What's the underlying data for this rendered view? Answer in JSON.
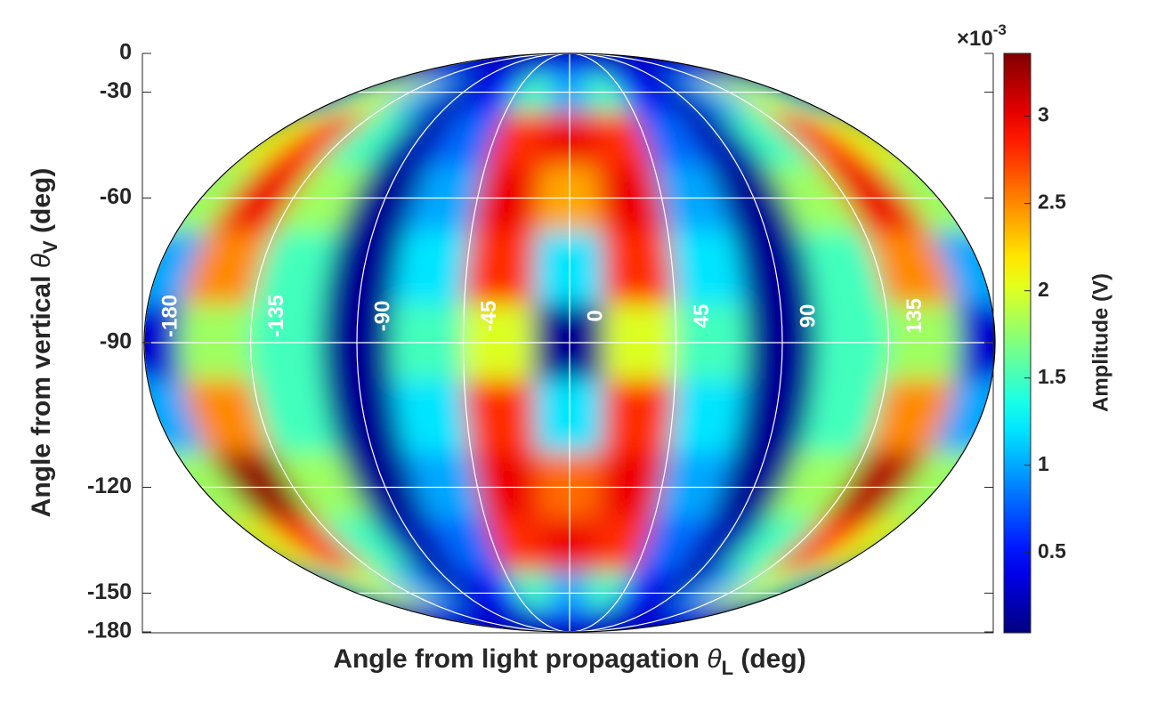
{
  "chart_data": {
    "type": "heatmap",
    "projection": "ellipse",
    "colormap": "jet",
    "grid": true,
    "xlabel": {
      "text": "Angle from light propagation ",
      "symbol": "θ",
      "subscript": "L",
      "unit": " (deg)"
    },
    "ylabel": {
      "text": "Angle from vertical ",
      "symbol": "θ",
      "subscript": "V",
      "unit": " (deg)"
    },
    "ylim": [
      -180,
      0
    ],
    "yticks": [
      0,
      -30,
      -60,
      -90,
      -120,
      -150,
      -180
    ],
    "xlim": [
      -180,
      180
    ],
    "xticks": [
      -180,
      -135,
      -90,
      -45,
      0,
      45,
      90,
      135
    ],
    "lon": [
      -180,
      -150,
      -120,
      -90,
      -60,
      -30,
      0,
      30,
      60,
      90,
      120,
      150,
      180
    ],
    "lat": [
      0,
      -15,
      -30,
      -45,
      -60,
      -75,
      -90,
      -105,
      -120,
      -135,
      -150,
      -165,
      -180
    ],
    "values": [
      [
        0.1,
        0.1,
        0.1,
        0.1,
        0.1,
        0.1,
        0.1,
        0.1,
        0.1,
        0.1,
        0.1,
        0.1,
        0.1
      ],
      [
        0.4,
        0.5,
        0.4,
        0.2,
        0.3,
        0.6,
        0.5,
        0.6,
        0.3,
        0.2,
        0.4,
        0.5,
        0.4
      ],
      [
        1.5,
        2.0,
        1.0,
        0.2,
        0.5,
        1.5,
        1.0,
        1.5,
        0.5,
        0.2,
        1.0,
        2.0,
        1.5
      ],
      [
        2.0,
        2.8,
        1.5,
        0.2,
        0.8,
        2.8,
        3.0,
        2.8,
        0.8,
        0.2,
        1.5,
        2.8,
        2.0
      ],
      [
        1.8,
        3.0,
        1.8,
        0.1,
        1.0,
        3.0,
        2.4,
        3.0,
        1.0,
        0.1,
        1.8,
        3.0,
        1.8
      ],
      [
        1.0,
        2.5,
        1.5,
        0.1,
        1.2,
        2.8,
        1.2,
        2.8,
        1.2,
        0.1,
        1.5,
        2.5,
        1.0
      ],
      [
        0.3,
        1.8,
        1.5,
        0.1,
        1.5,
        2.0,
        0.1,
        2.0,
        1.5,
        0.1,
        1.5,
        1.8,
        0.3
      ],
      [
        1.0,
        2.5,
        1.5,
        0.1,
        1.2,
        2.8,
        1.2,
        2.8,
        1.2,
        0.1,
        1.5,
        2.5,
        1.0
      ],
      [
        1.8,
        3.3,
        1.8,
        0.1,
        1.0,
        3.0,
        2.6,
        3.0,
        1.0,
        0.1,
        1.8,
        3.2,
        1.8
      ],
      [
        2.0,
        2.8,
        1.5,
        0.2,
        0.8,
        2.8,
        3.0,
        2.8,
        0.8,
        0.2,
        1.5,
        2.8,
        2.0
      ],
      [
        1.5,
        2.0,
        1.0,
        0.2,
        0.5,
        1.5,
        1.0,
        1.5,
        0.5,
        0.2,
        1.0,
        2.0,
        1.5
      ],
      [
        0.4,
        0.5,
        0.4,
        0.2,
        0.3,
        0.6,
        0.5,
        0.6,
        0.3,
        0.2,
        0.4,
        0.5,
        0.4
      ],
      [
        0.1,
        0.1,
        0.1,
        0.1,
        0.1,
        0.1,
        0.1,
        0.1,
        0.1,
        0.1,
        0.1,
        0.1,
        0.1
      ]
    ],
    "colorbar": {
      "label": "Amplitude (V)",
      "lim": [
        0.04,
        3.36
      ],
      "ticks": [
        0.5,
        1,
        1.5,
        2,
        2.5,
        3
      ],
      "multiplier": {
        "base": "×10",
        "exponent": "-3"
      }
    }
  }
}
